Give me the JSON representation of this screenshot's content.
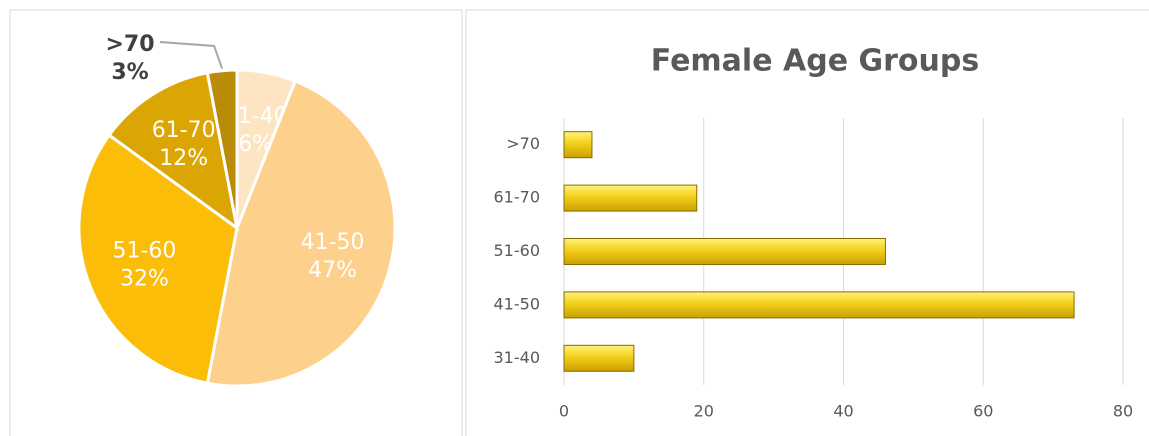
{
  "chart_data": [
    {
      "type": "pie",
      "categories": [
        "31-40",
        "41-50",
        "51-60",
        "61-70",
        ">70"
      ],
      "values": [
        6,
        47,
        32,
        12,
        3
      ],
      "value_labels": [
        "6%",
        "47%",
        "32%",
        "12%",
        "3%"
      ],
      "colors": [
        "#fde4c2",
        "#fdd08c",
        "#fbbd08",
        "#dba503",
        "#b98b06"
      ]
    },
    {
      "type": "bar",
      "title": "Female Age Groups",
      "categories": [
        "31-40",
        "41-50",
        "51-60",
        "61-70",
        ">70"
      ],
      "values": [
        10,
        73,
        46,
        19,
        4
      ],
      "color": "#f2cf1a",
      "orientation": "horizontal",
      "xlim": [
        0,
        80
      ],
      "xticks": [
        0,
        20,
        40,
        60,
        80
      ],
      "grid": true
    }
  ]
}
